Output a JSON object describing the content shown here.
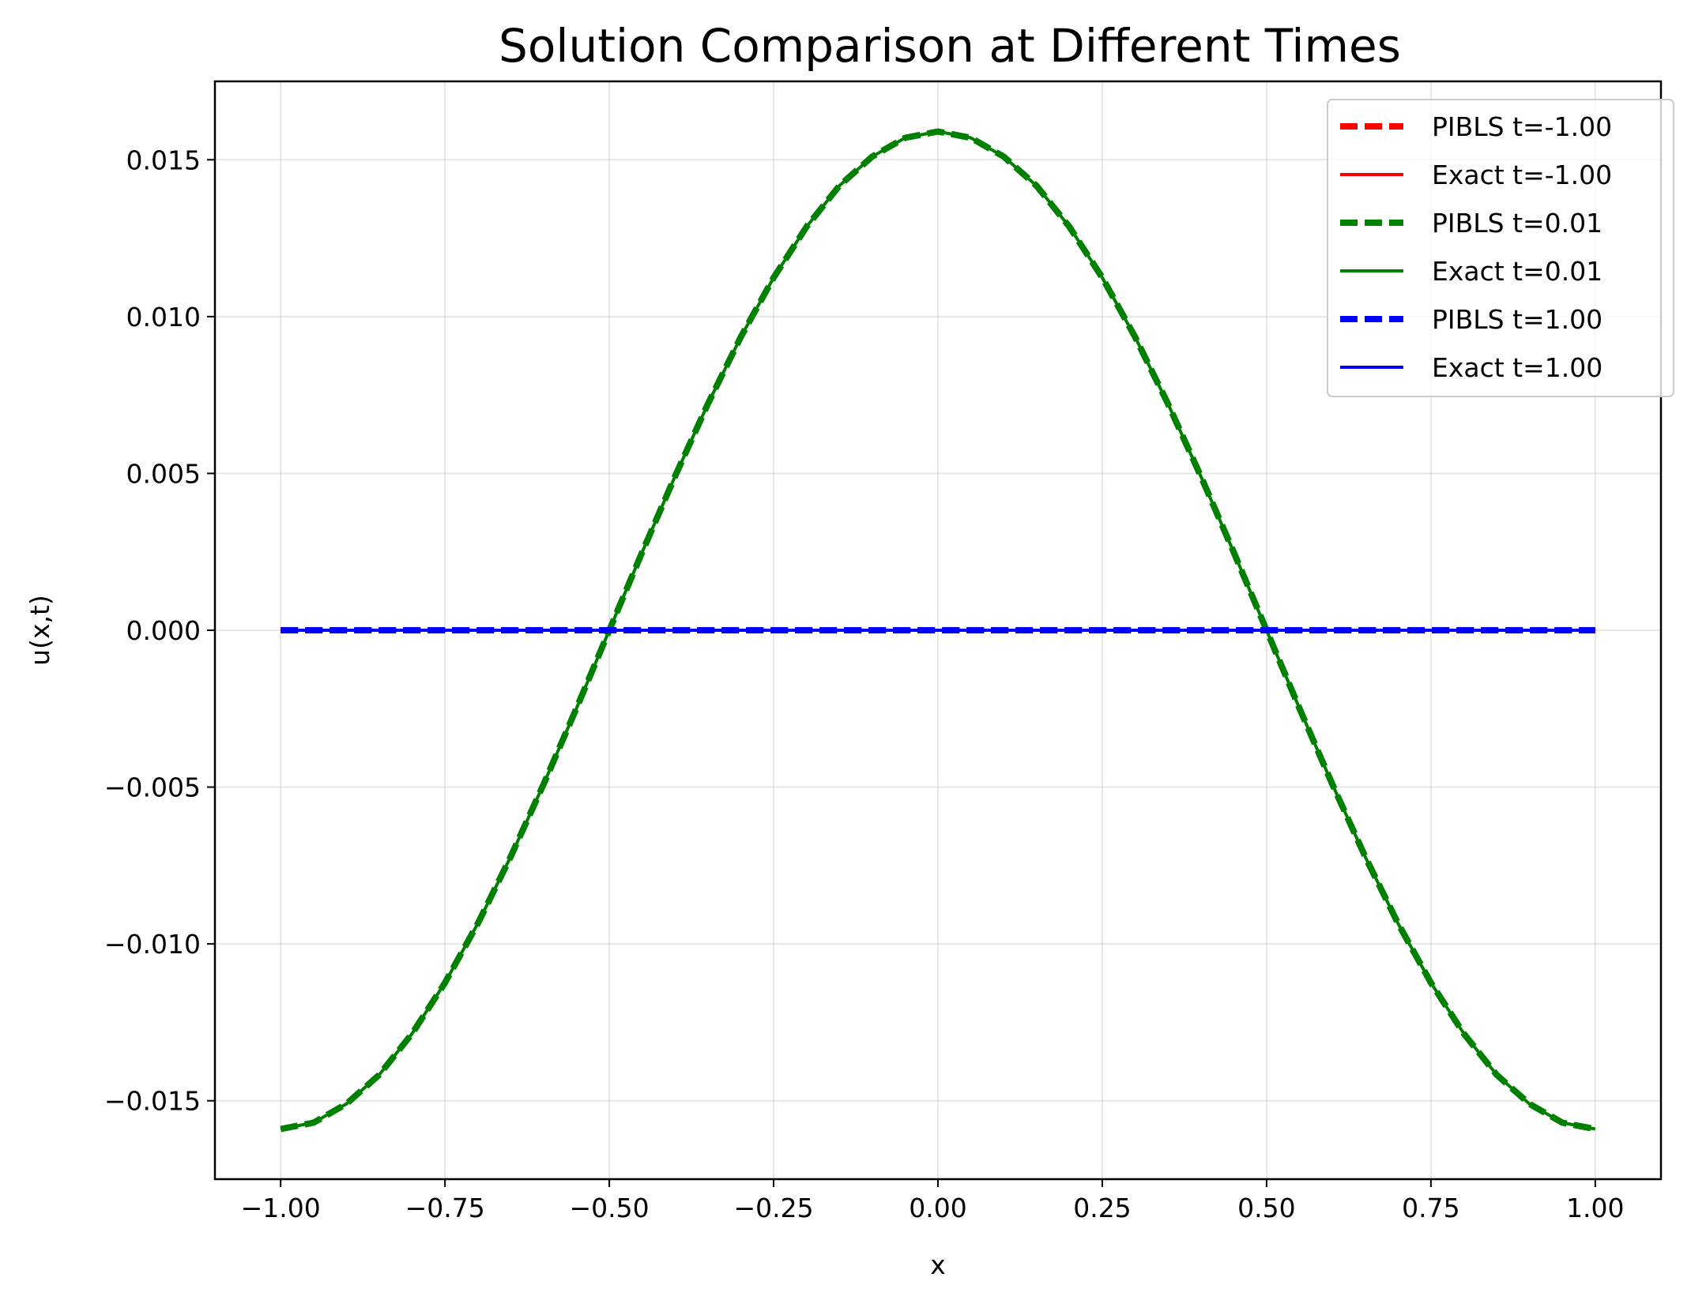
{
  "chart_data": {
    "type": "line",
    "title": "Solution Comparison at Different Times",
    "xlabel": "x",
    "ylabel": "u(x,t)",
    "xlim": [
      -1.1,
      1.1
    ],
    "ylim": [
      -0.0175,
      0.0175
    ],
    "xticks": [
      -1.0,
      -0.75,
      -0.5,
      -0.25,
      0.0,
      0.25,
      0.5,
      0.75,
      1.0
    ],
    "xtick_labels": [
      "−1.00",
      "−0.75",
      "−0.50",
      "−0.25",
      "0.00",
      "0.25",
      "0.50",
      "0.75",
      "1.00"
    ],
    "yticks": [
      -0.015,
      -0.01,
      -0.005,
      0.0,
      0.005,
      0.01,
      0.015
    ],
    "ytick_labels": [
      "−0.015",
      "−0.010",
      "−0.005",
      "0.000",
      "0.005",
      "0.010",
      "0.015"
    ],
    "grid": true,
    "legend_position": "top-right",
    "x": [
      -1.0,
      -0.95,
      -0.9,
      -0.85,
      -0.8,
      -0.75,
      -0.7,
      -0.65,
      -0.6,
      -0.55,
      -0.5,
      -0.45,
      -0.4,
      -0.35,
      -0.3,
      -0.25,
      -0.2,
      -0.15,
      -0.1,
      -0.05,
      0.0,
      0.05,
      0.1,
      0.15,
      0.2,
      0.25,
      0.3,
      0.35,
      0.4,
      0.45,
      0.5,
      0.55,
      0.6,
      0.65,
      0.7,
      0.75,
      0.8,
      0.85,
      0.9,
      0.95,
      1.0
    ],
    "series": [
      {
        "name": "PIBLS t=-1.00",
        "color": "#ff0000",
        "style": "dashed",
        "values": [
          0,
          0,
          0,
          0,
          0,
          0,
          0,
          0,
          0,
          0,
          0,
          0,
          0,
          0,
          0,
          0,
          0,
          0,
          0,
          0,
          0,
          0,
          0,
          0,
          0,
          0,
          0,
          0,
          0,
          0,
          0,
          0,
          0,
          0,
          0,
          0,
          0,
          0,
          0,
          0,
          0
        ]
      },
      {
        "name": "Exact t=-1.00",
        "color": "#ff0000",
        "style": "solid",
        "values": [
          0,
          0,
          0,
          0,
          0,
          0,
          0,
          0,
          0,
          0,
          0,
          0,
          0,
          0,
          0,
          0,
          0,
          0,
          0,
          0,
          0,
          0,
          0,
          0,
          0,
          0,
          0,
          0,
          0,
          0,
          0,
          0,
          0,
          0,
          0,
          0,
          0,
          0,
          0,
          0,
          0
        ]
      },
      {
        "name": "PIBLS t=0.01",
        "color": "#008000",
        "style": "dashed",
        "values": [
          -0.0159,
          -0.0157,
          -0.0151,
          -0.01417,
          -0.01286,
          -0.01124,
          -0.00935,
          -0.00722,
          -0.00491,
          -0.00249,
          0.0,
          0.00249,
          0.00491,
          0.00722,
          0.00935,
          0.01124,
          0.01286,
          0.01417,
          0.0151,
          0.0157,
          0.0159,
          0.0157,
          0.0151,
          0.01417,
          0.01286,
          0.01124,
          0.00935,
          0.00722,
          0.00491,
          0.00249,
          0.0,
          -0.00249,
          -0.00491,
          -0.00722,
          -0.00935,
          -0.01124,
          -0.01286,
          -0.01417,
          -0.0151,
          -0.0157,
          -0.0159
        ]
      },
      {
        "name": "Exact t=0.01",
        "color": "#008000",
        "style": "solid",
        "values": [
          -0.0159,
          -0.0157,
          -0.0151,
          -0.01417,
          -0.01286,
          -0.01124,
          -0.00935,
          -0.00722,
          -0.00491,
          -0.00249,
          0.0,
          0.00249,
          0.00491,
          0.00722,
          0.00935,
          0.01124,
          0.01286,
          0.01417,
          0.0151,
          0.0157,
          0.0159,
          0.0157,
          0.0151,
          0.01417,
          0.01286,
          0.01124,
          0.00935,
          0.00722,
          0.00491,
          0.00249,
          0.0,
          -0.00249,
          -0.00491,
          -0.00722,
          -0.00935,
          -0.01124,
          -0.01286,
          -0.01417,
          -0.0151,
          -0.0157,
          -0.0159
        ]
      },
      {
        "name": "PIBLS t=1.00",
        "color": "#0000ff",
        "style": "dashed",
        "values": [
          0,
          0,
          0,
          0,
          0,
          0,
          0,
          0,
          0,
          0,
          0,
          0,
          0,
          0,
          0,
          0,
          0,
          0,
          0,
          0,
          0,
          0,
          0,
          0,
          0,
          0,
          0,
          0,
          0,
          0,
          0,
          0,
          0,
          0,
          0,
          0,
          0,
          0,
          0,
          0,
          0
        ]
      },
      {
        "name": "Exact t=1.00",
        "color": "#0000ff",
        "style": "solid",
        "values": [
          0,
          0,
          0,
          0,
          0,
          0,
          0,
          0,
          0,
          0,
          0,
          0,
          0,
          0,
          0,
          0,
          0,
          0,
          0,
          0,
          0,
          0,
          0,
          0,
          0,
          0,
          0,
          0,
          0,
          0,
          0,
          0,
          0,
          0,
          0,
          0,
          0,
          0,
          0,
          0,
          0
        ]
      }
    ]
  }
}
